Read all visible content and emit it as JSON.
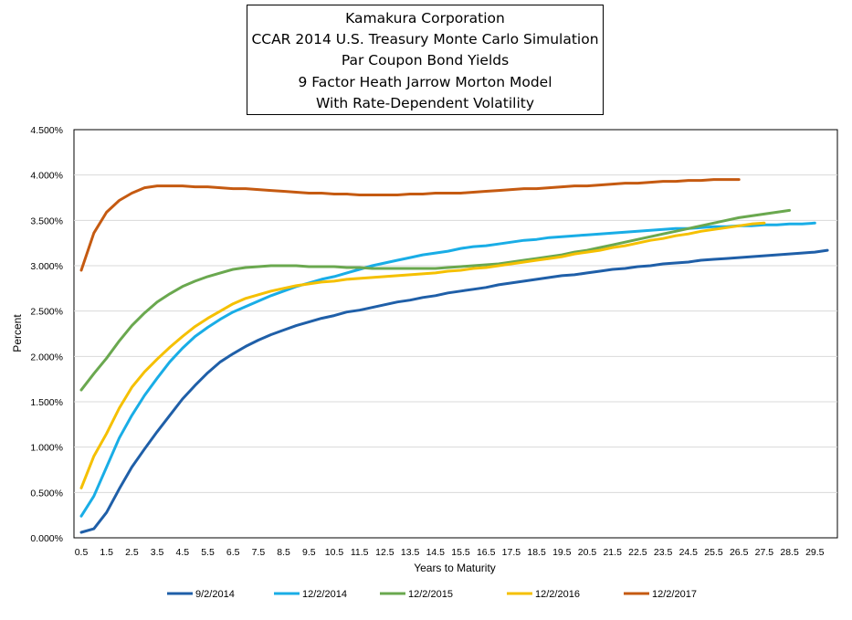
{
  "title_lines": [
    "Kamakura Corporation",
    "CCAR 2014 U.S. Treasury Monte Carlo Simulation",
    "Par Coupon Bond Yields",
    "9 Factor Heath Jarrow Morton Model",
    "With Rate-Dependent Volatility"
  ],
  "chart_data": {
    "type": "line",
    "xlabel": "Years to Maturity",
    "ylabel": "Percent",
    "ylim": [
      0,
      4.5
    ],
    "yticks": [
      "0.000%",
      "0.500%",
      "1.000%",
      "1.500%",
      "2.000%",
      "2.500%",
      "3.000%",
      "3.500%",
      "4.000%",
      "4.500%"
    ],
    "xticks": [
      "0.5",
      "1.5",
      "2.5",
      "3.5",
      "4.5",
      "5.5",
      "6.5",
      "7.5",
      "8.5",
      "9.5",
      "10.5",
      "11.5",
      "12.5",
      "13.5",
      "14.5",
      "15.5",
      "16.5",
      "17.5",
      "18.5",
      "19.5",
      "20.5",
      "21.5",
      "22.5",
      "23.5",
      "24.5",
      "25.5",
      "26.5",
      "27.5",
      "28.5",
      "29.5"
    ],
    "grid": "horizontal",
    "legend_position": "bottom",
    "series": [
      {
        "name": "9/2/2014",
        "color": "#1f5fa8",
        "x": [
          0.5,
          1,
          1.5,
          2,
          2.5,
          3,
          3.5,
          4,
          4.5,
          5,
          5.5,
          6,
          6.5,
          7,
          7.5,
          8,
          8.5,
          9,
          9.5,
          10,
          10.5,
          11,
          11.5,
          12,
          12.5,
          13,
          13.5,
          14,
          14.5,
          15,
          15.5,
          16,
          16.5,
          17,
          17.5,
          18,
          18.5,
          19,
          19.5,
          20,
          20.5,
          21,
          21.5,
          22,
          22.5,
          23,
          23.5,
          24,
          24.5,
          25,
          25.5,
          26,
          26.5,
          27,
          27.5,
          28,
          28.5,
          29,
          29.5,
          30
        ],
        "y": [
          0.06,
          0.1,
          0.28,
          0.54,
          0.78,
          0.98,
          1.17,
          1.35,
          1.53,
          1.68,
          1.82,
          1.94,
          2.03,
          2.11,
          2.18,
          2.24,
          2.29,
          2.34,
          2.38,
          2.42,
          2.45,
          2.49,
          2.51,
          2.54,
          2.57,
          2.6,
          2.62,
          2.65,
          2.67,
          2.7,
          2.72,
          2.74,
          2.76,
          2.79,
          2.81,
          2.83,
          2.85,
          2.87,
          2.89,
          2.9,
          2.92,
          2.94,
          2.96,
          2.97,
          2.99,
          3.0,
          3.02,
          3.03,
          3.04,
          3.06,
          3.07,
          3.08,
          3.09,
          3.1,
          3.11,
          3.12,
          3.13,
          3.14,
          3.15,
          3.17
        ]
      },
      {
        "name": "12/2/2014",
        "color": "#19ade6",
        "x": [
          0.5,
          1,
          1.5,
          2,
          2.5,
          3,
          3.5,
          4,
          4.5,
          5,
          5.5,
          6,
          6.5,
          7,
          7.5,
          8,
          8.5,
          9,
          9.5,
          10,
          10.5,
          11,
          11.5,
          12,
          12.5,
          13,
          13.5,
          14,
          14.5,
          15,
          15.5,
          16,
          16.5,
          17,
          17.5,
          18,
          18.5,
          19,
          19.5,
          20,
          20.5,
          21,
          21.5,
          22,
          22.5,
          23,
          23.5,
          24,
          24.5,
          25,
          25.5,
          26,
          26.5,
          27,
          27.5,
          28,
          28.5,
          29,
          29.5
        ],
        "y": [
          0.24,
          0.46,
          0.78,
          1.1,
          1.35,
          1.57,
          1.76,
          1.94,
          2.09,
          2.22,
          2.32,
          2.41,
          2.49,
          2.55,
          2.61,
          2.67,
          2.72,
          2.77,
          2.81,
          2.85,
          2.88,
          2.92,
          2.96,
          3.0,
          3.03,
          3.06,
          3.09,
          3.12,
          3.14,
          3.16,
          3.19,
          3.21,
          3.22,
          3.24,
          3.26,
          3.28,
          3.29,
          3.31,
          3.32,
          3.33,
          3.34,
          3.35,
          3.36,
          3.37,
          3.38,
          3.39,
          3.4,
          3.41,
          3.41,
          3.42,
          3.43,
          3.43,
          3.44,
          3.44,
          3.45,
          3.45,
          3.46,
          3.46,
          3.47
        ]
      },
      {
        "name": "12/2/2015",
        "color": "#6aa84f",
        "x": [
          0.5,
          1,
          1.5,
          2,
          2.5,
          3,
          3.5,
          4,
          4.5,
          5,
          5.5,
          6,
          6.5,
          7,
          7.5,
          8,
          8.5,
          9,
          9.5,
          10,
          10.5,
          11,
          11.5,
          12,
          12.5,
          13,
          13.5,
          14,
          14.5,
          15,
          15.5,
          16,
          16.5,
          17,
          17.5,
          18,
          18.5,
          19,
          19.5,
          20,
          20.5,
          21,
          21.5,
          22,
          22.5,
          23,
          23.5,
          24,
          24.5,
          25,
          25.5,
          26,
          26.5,
          27,
          27.5,
          28,
          28.5
        ],
        "y": [
          1.63,
          1.81,
          1.98,
          2.17,
          2.34,
          2.48,
          2.6,
          2.69,
          2.77,
          2.83,
          2.88,
          2.92,
          2.96,
          2.98,
          2.99,
          3.0,
          3.0,
          3.0,
          2.99,
          2.99,
          2.99,
          2.98,
          2.98,
          2.97,
          2.97,
          2.97,
          2.97,
          2.97,
          2.97,
          2.98,
          2.99,
          3.0,
          3.01,
          3.02,
          3.04,
          3.06,
          3.08,
          3.1,
          3.12,
          3.15,
          3.17,
          3.2,
          3.23,
          3.26,
          3.29,
          3.32,
          3.35,
          3.38,
          3.41,
          3.44,
          3.47,
          3.5,
          3.53,
          3.55,
          3.57,
          3.59,
          3.61
        ]
      },
      {
        "name": "12/2/2016",
        "color": "#f5c000",
        "x": [
          0.5,
          1,
          1.5,
          2,
          2.5,
          3,
          3.5,
          4,
          4.5,
          5,
          5.5,
          6,
          6.5,
          7,
          7.5,
          8,
          8.5,
          9,
          9.5,
          10,
          10.5,
          11,
          11.5,
          12,
          12.5,
          13,
          13.5,
          14,
          14.5,
          15,
          15.5,
          16,
          16.5,
          17,
          17.5,
          18,
          18.5,
          19,
          19.5,
          20,
          20.5,
          21,
          21.5,
          22,
          22.5,
          23,
          23.5,
          24,
          24.5,
          25,
          25.5,
          26,
          26.5,
          27,
          27.5
        ],
        "y": [
          0.55,
          0.9,
          1.15,
          1.43,
          1.66,
          1.83,
          1.97,
          2.1,
          2.22,
          2.33,
          2.42,
          2.5,
          2.58,
          2.64,
          2.68,
          2.72,
          2.75,
          2.78,
          2.8,
          2.82,
          2.83,
          2.85,
          2.86,
          2.87,
          2.88,
          2.89,
          2.9,
          2.91,
          2.92,
          2.94,
          2.95,
          2.97,
          2.98,
          3.0,
          3.02,
          3.04,
          3.06,
          3.08,
          3.1,
          3.13,
          3.15,
          3.17,
          3.2,
          3.22,
          3.25,
          3.28,
          3.3,
          3.33,
          3.35,
          3.38,
          3.4,
          3.42,
          3.44,
          3.46,
          3.47
        ]
      },
      {
        "name": "12/2/2017",
        "color": "#c55a11",
        "x": [
          0.5,
          1,
          1.5,
          2,
          2.5,
          3,
          3.5,
          4,
          4.5,
          5,
          5.5,
          6,
          6.5,
          7,
          7.5,
          8,
          8.5,
          9,
          9.5,
          10,
          10.5,
          11,
          11.5,
          12,
          12.5,
          13,
          13.5,
          14,
          14.5,
          15,
          15.5,
          16,
          16.5,
          17,
          17.5,
          18,
          18.5,
          19,
          19.5,
          20,
          20.5,
          21,
          21.5,
          22,
          22.5,
          23,
          23.5,
          24,
          24.5,
          25,
          25.5,
          26,
          26.5
        ],
        "y": [
          2.95,
          3.36,
          3.59,
          3.72,
          3.8,
          3.86,
          3.88,
          3.88,
          3.88,
          3.87,
          3.87,
          3.86,
          3.85,
          3.85,
          3.84,
          3.83,
          3.82,
          3.81,
          3.8,
          3.8,
          3.79,
          3.79,
          3.78,
          3.78,
          3.78,
          3.78,
          3.79,
          3.79,
          3.8,
          3.8,
          3.8,
          3.81,
          3.82,
          3.83,
          3.84,
          3.85,
          3.85,
          3.86,
          3.87,
          3.88,
          3.88,
          3.89,
          3.9,
          3.91,
          3.91,
          3.92,
          3.93,
          3.93,
          3.94,
          3.94,
          3.95,
          3.95,
          3.95
        ]
      }
    ]
  }
}
